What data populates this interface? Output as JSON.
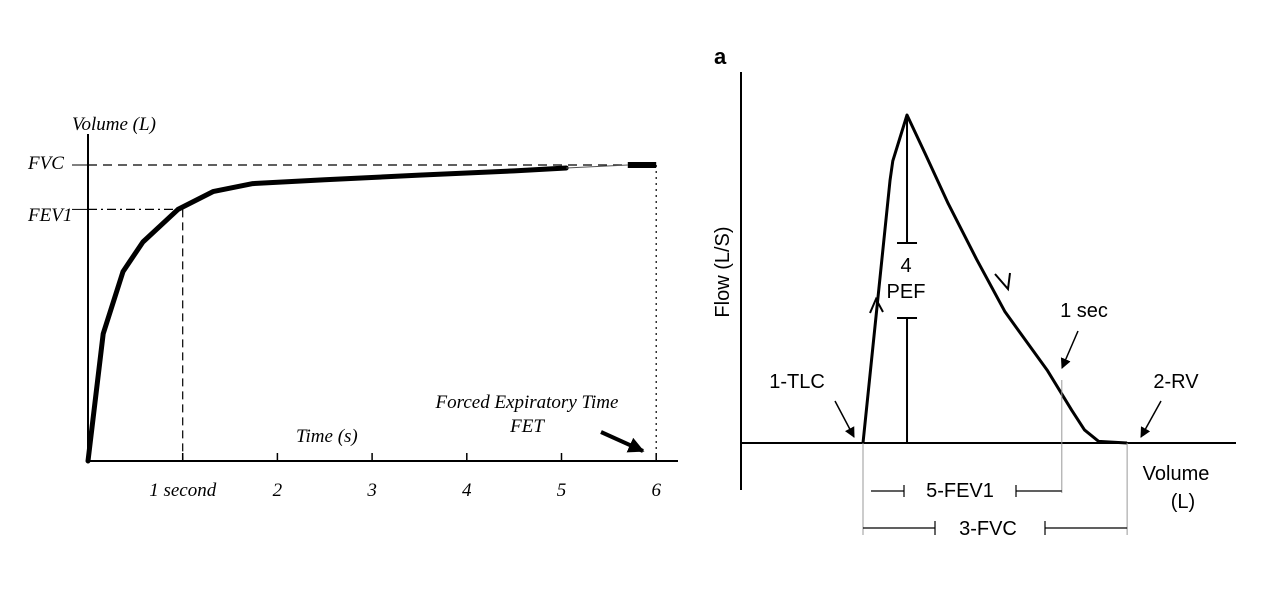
{
  "chart_data": [
    {
      "type": "line",
      "title": "",
      "ylabel": "Volume (L)",
      "xlabel": "Time (s)",
      "xlim": [
        0,
        6.2
      ],
      "ylim": [
        0,
        1
      ],
      "x_ticks": [
        {
          "value": 1,
          "label": "1 second"
        },
        {
          "value": 2,
          "label": "2"
        },
        {
          "value": 3,
          "label": "3"
        },
        {
          "value": 4,
          "label": "4"
        },
        {
          "value": 5,
          "label": "5"
        },
        {
          "value": 6,
          "label": "6"
        }
      ],
      "series": [
        {
          "name": "Volume-time curve",
          "x": [
            0,
            0.16,
            0.37,
            0.58,
            0.95,
            1.32,
            1.74,
            2.5,
            3.5,
            4.5,
            5.05
          ],
          "y": [
            0,
            0.43,
            0.64,
            0.74,
            0.85,
            0.91,
            0.937,
            0.95,
            0.966,
            0.98,
            0.99
          ]
        },
        {
          "name": "Plateau segment",
          "x": [
            5.7,
            6.0
          ],
          "y": [
            1.0,
            1.0
          ]
        }
      ],
      "reference_lines": {
        "FVC": {
          "label": "FVC",
          "y": 1.0,
          "x": 6
        },
        "FEV1": {
          "label": "FEV1",
          "y": 0.85,
          "x": 1
        }
      },
      "annotation": {
        "line1": "Forced Expiratory Time",
        "line2": "FET"
      }
    },
    {
      "type": "line",
      "panel_label": "a",
      "ylabel": "Flow (L/S)",
      "xlabel_line1": "Volume",
      "xlabel_line2": "(L)",
      "xlim": [
        0,
        10
      ],
      "ylim": [
        0,
        10
      ],
      "series": [
        {
          "name": "Flow-volume loop (expiratory limb)",
          "x": [
            0,
            0.95,
            1.05,
            1.3,
            1.55,
            2.2,
            3.0,
            4.0,
            5.0,
            6.5,
            7.35,
            7.8,
            8.3,
            9.3
          ],
          "y": [
            0,
            8.0,
            8.6,
            9.3,
            10.0,
            8.8,
            7.3,
            5.6,
            4.0,
            2.2,
            1.0,
            0.4,
            0.05,
            0.0
          ]
        }
      ],
      "markers": {
        "PEF": {
          "label": "PEF",
          "number": "4",
          "x": 1.55
        },
        "TLC": {
          "label": "1-TLC",
          "x": 0
        },
        "RV": {
          "label": "2-RV",
          "x": 9.3
        },
        "one_sec": {
          "label": "1 sec",
          "x": 7.0
        }
      },
      "intervals": {
        "FEV1": {
          "label": "5-FEV1",
          "from": 0,
          "to": 7.0
        },
        "FVC": {
          "label": "3-FVC",
          "from": 0,
          "to": 9.3
        }
      }
    }
  ]
}
